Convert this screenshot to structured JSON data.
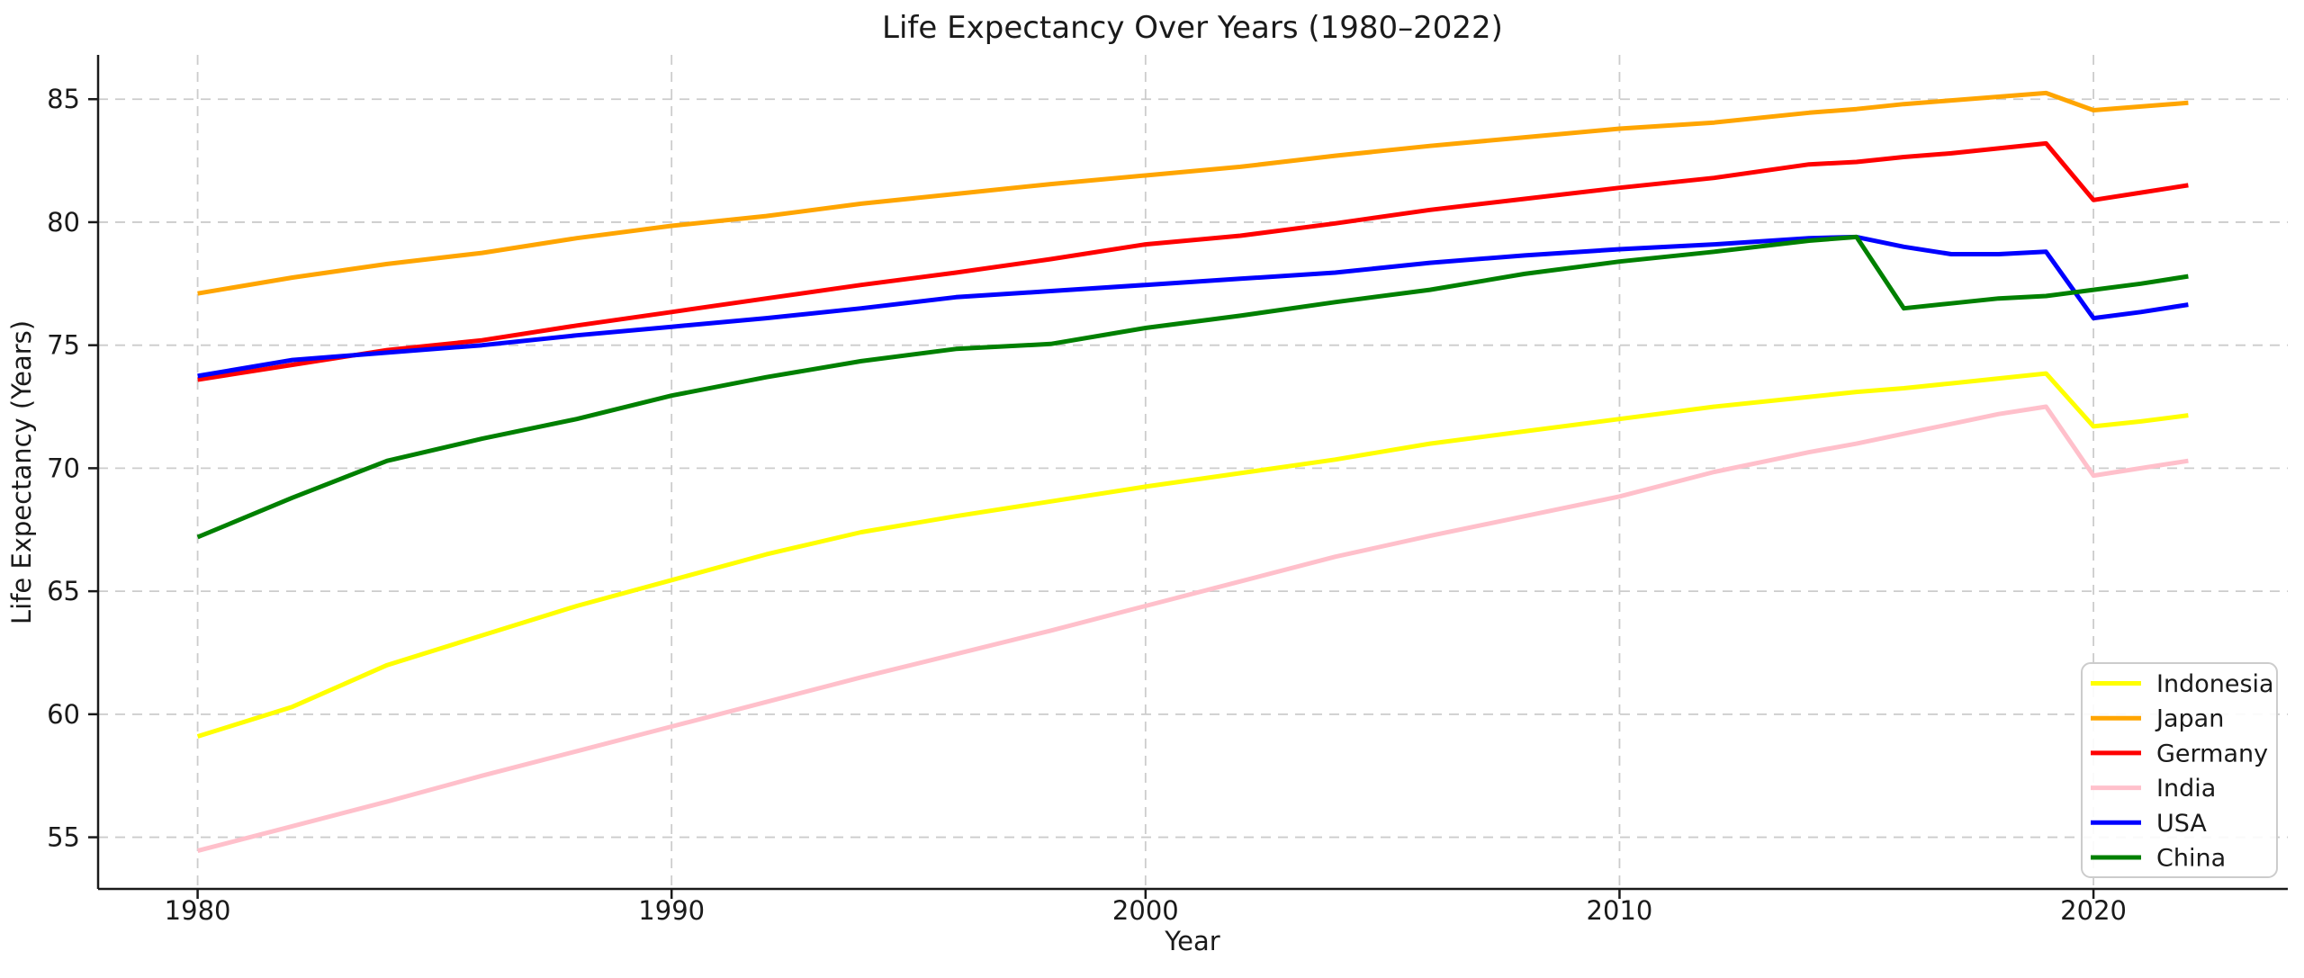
{
  "chart_data": {
    "type": "line",
    "title": "Life Expectancy Over Years (1980–2022)",
    "xlabel": "Year",
    "ylabel": "Life Expectancy (Years)",
    "xlim": [
      1977.9,
      2024.1
    ],
    "ylim": [
      52.9,
      86.8
    ],
    "xticks": [
      1980,
      1990,
      2000,
      2010,
      2020
    ],
    "yticks": [
      55,
      60,
      65,
      70,
      75,
      80,
      85
    ],
    "grid": true,
    "grid_style": "dashed",
    "legend_position": "lower right",
    "background_color": "#ffffff",
    "grid_color": "#cccccc",
    "text_color": "#1a1a1a",
    "x": [
      1980,
      1982,
      1984,
      1986,
      1988,
      1990,
      1992,
      1994,
      1996,
      1998,
      2000,
      2002,
      2004,
      2006,
      2008,
      2010,
      2012,
      2014,
      2015,
      2016,
      2017,
      2018,
      2019,
      2020,
      2021,
      2022
    ],
    "series": [
      {
        "name": "Indonesia",
        "color": "#ffff00",
        "values": [
          59.1,
          60.3,
          62.0,
          63.2,
          64.4,
          65.45,
          66.5,
          67.4,
          68.05,
          68.65,
          69.25,
          69.8,
          70.35,
          71.0,
          71.5,
          72.0,
          72.5,
          72.9,
          73.1,
          73.25,
          73.45,
          73.65,
          73.85,
          71.7,
          71.9,
          72.15
        ]
      },
      {
        "name": "Japan",
        "color": "#ffa500",
        "values": [
          77.1,
          77.75,
          78.3,
          78.75,
          79.35,
          79.85,
          80.25,
          80.75,
          81.15,
          81.55,
          81.9,
          82.25,
          82.7,
          83.1,
          83.45,
          83.8,
          84.05,
          84.45,
          84.6,
          84.8,
          84.95,
          85.1,
          85.25,
          84.55,
          84.7,
          84.85
        ]
      },
      {
        "name": "Germany",
        "color": "#ff0000",
        "values": [
          73.6,
          74.2,
          74.8,
          75.2,
          75.8,
          76.35,
          76.9,
          77.45,
          77.95,
          78.5,
          79.1,
          79.45,
          79.95,
          80.5,
          80.95,
          81.4,
          81.8,
          82.35,
          82.45,
          82.65,
          82.8,
          83.0,
          83.2,
          80.9,
          81.2,
          81.5
        ]
      },
      {
        "name": "India",
        "color": "#ffc0cb",
        "values": [
          54.45,
          55.45,
          56.45,
          57.5,
          58.5,
          59.5,
          60.5,
          61.5,
          62.45,
          63.4,
          64.4,
          65.4,
          66.4,
          67.25,
          68.05,
          68.85,
          69.85,
          70.65,
          71.0,
          71.4,
          71.8,
          72.2,
          72.5,
          69.7,
          70.0,
          70.3
        ]
      },
      {
        "name": "USA",
        "color": "#0000ff",
        "values": [
          73.75,
          74.4,
          74.7,
          75.0,
          75.4,
          75.75,
          76.1,
          76.5,
          76.95,
          77.2,
          77.45,
          77.7,
          77.95,
          78.35,
          78.65,
          78.9,
          79.1,
          79.35,
          79.4,
          79.0,
          78.7,
          78.7,
          78.8,
          76.1,
          76.35,
          76.65
        ]
      },
      {
        "name": "China",
        "color": "#008000",
        "values": [
          67.2,
          68.8,
          70.3,
          71.2,
          72.0,
          72.95,
          73.7,
          74.35,
          74.85,
          75.05,
          75.7,
          76.2,
          76.75,
          77.25,
          77.9,
          78.4,
          78.8,
          79.25,
          79.4,
          76.5,
          76.7,
          76.9,
          77.0,
          77.25,
          77.5,
          77.8
        ]
      }
    ]
  }
}
